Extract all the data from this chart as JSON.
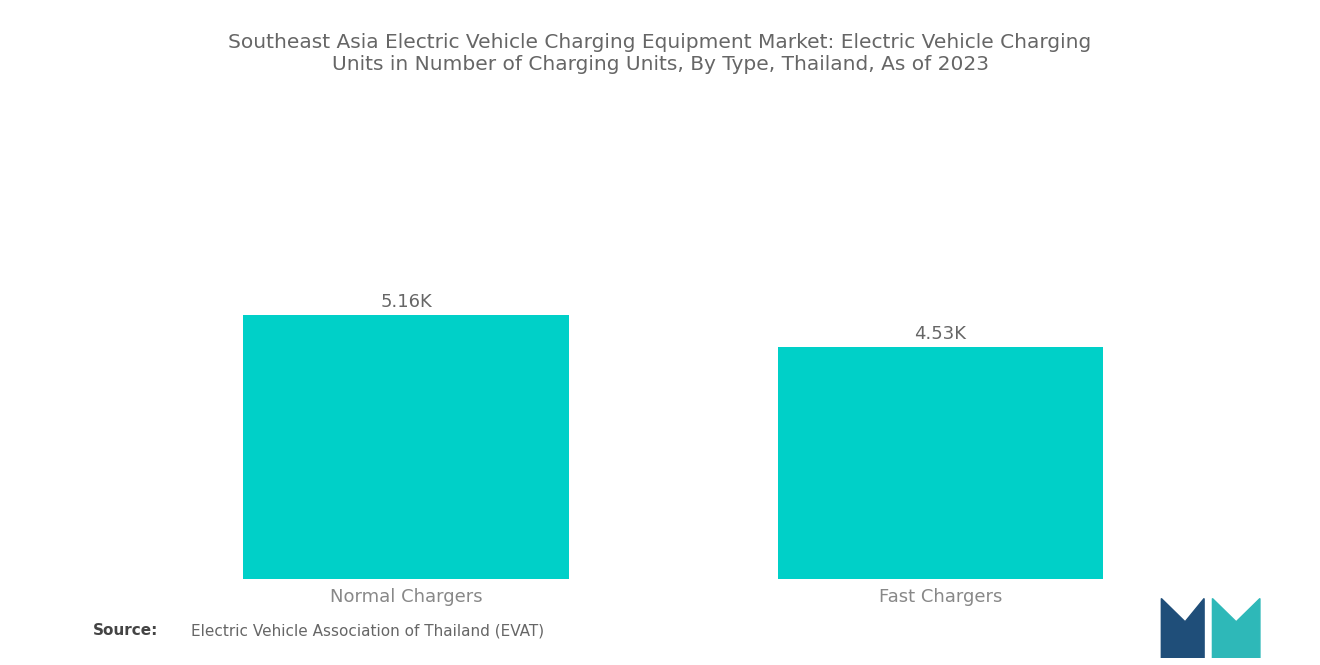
{
  "title_line1": "Southeast Asia Electric Vehicle Charging Equipment Market: Electric Vehicle Charging",
  "title_line2": "Units in Number of Charging Units, By Type, Thailand, As of 2023",
  "categories": [
    "Normal Chargers",
    "Fast Chargers"
  ],
  "values": [
    5160,
    4530
  ],
  "value_labels": [
    "5.16K",
    "4.53K"
  ],
  "bar_color": "#00D0C8",
  "background_color": "#ffffff",
  "title_color": "#666666",
  "label_color": "#888888",
  "value_label_color": "#666666",
  "source_text": "Electric Vehicle Association of Thailand (EVAT)",
  "source_label": "Source:",
  "ylim": [
    0,
    6500
  ],
  "bar_width": 0.28,
  "title_fontsize": 14.5,
  "axis_label_fontsize": 13,
  "value_label_fontsize": 13,
  "source_fontsize": 11,
  "logo_navy": "#1f4e79",
  "logo_teal": "#2eb8b8"
}
